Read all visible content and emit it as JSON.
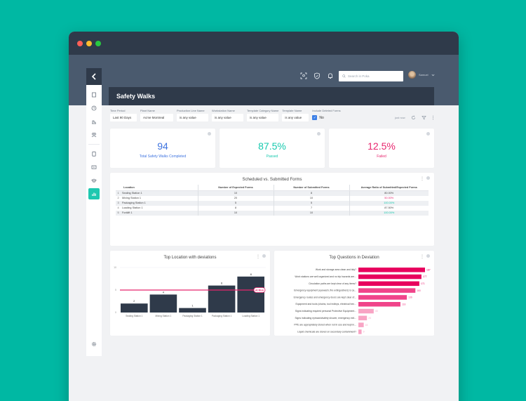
{
  "window": {
    "traffic_lights": [
      "#ff5f57",
      "#febc2e",
      "#28c840"
    ]
  },
  "header": {
    "icons": [
      "scan-icon",
      "shield-icon",
      "bell-icon"
    ],
    "search_placeholder": "Search in Poka",
    "user_name": "Samuel"
  },
  "sidebar": {
    "items": [
      {
        "name": "document-icon"
      },
      {
        "name": "clock-icon"
      },
      {
        "name": "machine-icon"
      },
      {
        "name": "users-icon"
      },
      {
        "name": "clipboard-icon"
      },
      {
        "name": "video-icon"
      },
      {
        "name": "graduation-cap-icon"
      },
      {
        "name": "chart-icon",
        "active": true
      }
    ],
    "bottom": "gear-icon"
  },
  "page": {
    "title": "Safety Walks"
  },
  "filters": [
    {
      "label": "Time Period",
      "value": "Last 90 Days"
    },
    {
      "label": "Plant Name",
      "value": "Acme Montreal"
    },
    {
      "label": "Production Line Name",
      "value": "is any value"
    },
    {
      "label": "Workstation Name",
      "value": "is any value"
    },
    {
      "label": "Template Category Name",
      "value": "is any value"
    },
    {
      "label": "Template Name",
      "value": "is any value"
    }
  ],
  "include_deleted": {
    "label": "Include Deleted Forms",
    "value": "No",
    "checked": true
  },
  "toolbar": {
    "updated": "just now"
  },
  "kpis": [
    {
      "value": "94",
      "caption": "Total Safety Walks Completed",
      "color": "#3f74e0"
    },
    {
      "value": "87.5%",
      "caption": "Passed",
      "color": "#16c9ae"
    },
    {
      "value": "12.5%",
      "caption": "Failed",
      "color": "#e8266e"
    }
  ],
  "table": {
    "title": "Scheduled vs. Submitted Forms",
    "columns": [
      "Location",
      "Number of Expected Forms",
      "Number of Submitted Forms",
      "Average Ratio of Submitted/Expected Forms"
    ],
    "rows": [
      {
        "idx": "1",
        "location": "Sealing Station 1",
        "expected": "10",
        "submitted": "8",
        "ratio": "80.00%",
        "color": "#444444"
      },
      {
        "idx": "2",
        "location": "Mixing Station 1",
        "expected": "20",
        "submitted": "10",
        "ratio": "50.00%",
        "color": "#e8266e"
      },
      {
        "idx": "3",
        "location": "Packaging Station 1",
        "expected": "5",
        "submitted": "5",
        "ratio": "100.00%",
        "color": "#16c9ae"
      },
      {
        "idx": "4",
        "location": "Loading Station 1",
        "expected": "8",
        "submitted": "7",
        "ratio": "87.50%",
        "color": "#444444"
      },
      {
        "idx": "5",
        "location": "Forklift 1",
        "expected": "10",
        "submitted": "10",
        "ratio": "100.00%",
        "color": "#16c9ae"
      }
    ]
  },
  "chart_data": [
    {
      "type": "bar",
      "title": "Top Location with deviations",
      "categories": [
        "Sealing Station 1",
        "Mixing Station 1",
        "Packaging Station 1",
        "Packaging Station 1",
        "Loading Station 1"
      ],
      "values": [
        2,
        4,
        1,
        6,
        8
      ],
      "ylim": [
        0,
        10
      ],
      "yticks": [
        0,
        5,
        10
      ],
      "threshold": {
        "value": 5,
        "label": "At Risk",
        "color": "#e8266e"
      },
      "bar_color": "#2f3a4a",
      "xlabel": "",
      "ylabel": ""
    },
    {
      "type": "bar",
      "orientation": "horizontal",
      "title": "Top Questions in Deviation",
      "categories": [
        "Work and storage area clean and tidy?",
        "Work stations are well organized and no trip hazards are...",
        "Circulation paths are kept clear of any items?",
        "Emergency equipment (eyewash, fire extinguishers) is ca...",
        "Emergency routes and emergency doors are kept clear of...",
        "Equipment and tools (chains, tool trolleys, electrical hen...",
        "Signs indicating required personal Protective Equipment...",
        "Signs indicating eyewash/safety shower, emergency exit...",
        "PPE are appropriately stored when not in use and kept in...",
        "Liquid chemicals are stored on secondary containment?"
      ],
      "values": [
        187,
        177,
        171,
        160,
        136,
        118,
        43,
        24,
        15,
        9
      ],
      "colors": [
        "#e8005e",
        "#e8005e",
        "#e8005e",
        "#f0448a",
        "#f0448a",
        "#f0448a",
        "#f8a4c4",
        "#f8a4c4",
        "#f8a4c4",
        "#f8a4c4"
      ]
    }
  ]
}
